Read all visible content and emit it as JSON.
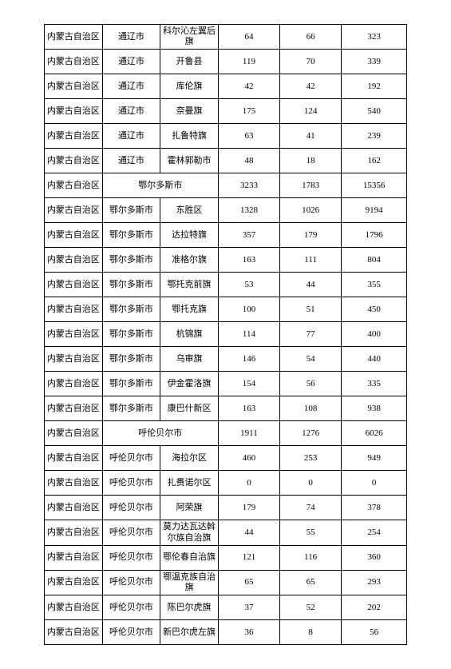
{
  "table": {
    "border_color": "#000000",
    "bg_color": "#ffffff",
    "font_color": "#000000",
    "font_size": 11,
    "rows": [
      {
        "cells": [
          "内蒙古自治区",
          "通辽市",
          "科尔沁左翼后旗",
          "64",
          "66",
          "323"
        ],
        "spans": [
          1,
          1,
          1,
          1,
          1,
          1
        ]
      },
      {
        "cells": [
          "内蒙古自治区",
          "通辽市",
          "开鲁县",
          "119",
          "70",
          "339"
        ],
        "spans": [
          1,
          1,
          1,
          1,
          1,
          1
        ]
      },
      {
        "cells": [
          "内蒙古自治区",
          "通辽市",
          "库伦旗",
          "42",
          "42",
          "192"
        ],
        "spans": [
          1,
          1,
          1,
          1,
          1,
          1
        ]
      },
      {
        "cells": [
          "内蒙古自治区",
          "通辽市",
          "奈曼旗",
          "175",
          "124",
          "540"
        ],
        "spans": [
          1,
          1,
          1,
          1,
          1,
          1
        ]
      },
      {
        "cells": [
          "内蒙古自治区",
          "通辽市",
          "扎鲁特旗",
          "63",
          "41",
          "239"
        ],
        "spans": [
          1,
          1,
          1,
          1,
          1,
          1
        ]
      },
      {
        "cells": [
          "内蒙古自治区",
          "通辽市",
          "霍林郭勒市",
          "48",
          "18",
          "162"
        ],
        "spans": [
          1,
          1,
          1,
          1,
          1,
          1
        ]
      },
      {
        "cells": [
          "内蒙古自治区",
          "鄂尔多斯市",
          "3233",
          "1783",
          "15356"
        ],
        "spans": [
          1,
          2,
          1,
          1,
          1
        ]
      },
      {
        "cells": [
          "内蒙古自治区",
          "鄂尔多斯市",
          "东胜区",
          "1328",
          "1026",
          "9194"
        ],
        "spans": [
          1,
          1,
          1,
          1,
          1,
          1
        ]
      },
      {
        "cells": [
          "内蒙古自治区",
          "鄂尔多斯市",
          "达拉特旗",
          "357",
          "179",
          "1796"
        ],
        "spans": [
          1,
          1,
          1,
          1,
          1,
          1
        ]
      },
      {
        "cells": [
          "内蒙古自治区",
          "鄂尔多斯市",
          "准格尔旗",
          "163",
          "111",
          "804"
        ],
        "spans": [
          1,
          1,
          1,
          1,
          1,
          1
        ]
      },
      {
        "cells": [
          "内蒙古自治区",
          "鄂尔多斯市",
          "鄂托克前旗",
          "53",
          "44",
          "355"
        ],
        "spans": [
          1,
          1,
          1,
          1,
          1,
          1
        ]
      },
      {
        "cells": [
          "内蒙古自治区",
          "鄂尔多斯市",
          "鄂托克旗",
          "100",
          "51",
          "450"
        ],
        "spans": [
          1,
          1,
          1,
          1,
          1,
          1
        ]
      },
      {
        "cells": [
          "内蒙古自治区",
          "鄂尔多斯市",
          "杭锦旗",
          "114",
          "77",
          "400"
        ],
        "spans": [
          1,
          1,
          1,
          1,
          1,
          1
        ]
      },
      {
        "cells": [
          "内蒙古自治区",
          "鄂尔多斯市",
          "乌审旗",
          "146",
          "54",
          "440"
        ],
        "spans": [
          1,
          1,
          1,
          1,
          1,
          1
        ]
      },
      {
        "cells": [
          "内蒙古自治区",
          "鄂尔多斯市",
          "伊金霍洛旗",
          "154",
          "56",
          "335"
        ],
        "spans": [
          1,
          1,
          1,
          1,
          1,
          1
        ]
      },
      {
        "cells": [
          "内蒙古自治区",
          "鄂尔多斯市",
          "康巴什新区",
          "163",
          "108",
          "938"
        ],
        "spans": [
          1,
          1,
          1,
          1,
          1,
          1
        ]
      },
      {
        "cells": [
          "内蒙古自治区",
          "呼伦贝尔市",
          "1911",
          "1276",
          "6026"
        ],
        "spans": [
          1,
          2,
          1,
          1,
          1
        ]
      },
      {
        "cells": [
          "内蒙古自治区",
          "呼伦贝尔市",
          "海拉尔区",
          "460",
          "253",
          "949"
        ],
        "spans": [
          1,
          1,
          1,
          1,
          1,
          1
        ]
      },
      {
        "cells": [
          "内蒙古自治区",
          "呼伦贝尔市",
          "扎赉诺尔区",
          "0",
          "0",
          "0"
        ],
        "spans": [
          1,
          1,
          1,
          1,
          1,
          1
        ]
      },
      {
        "cells": [
          "内蒙古自治区",
          "呼伦贝尔市",
          "阿荣旗",
          "179",
          "74",
          "378"
        ],
        "spans": [
          1,
          1,
          1,
          1,
          1,
          1
        ]
      },
      {
        "cells": [
          "内蒙古自治区",
          "呼伦贝尔市",
          "莫力达瓦达斡尔族自治旗",
          "44",
          "55",
          "254"
        ],
        "spans": [
          1,
          1,
          1,
          1,
          1,
          1
        ]
      },
      {
        "cells": [
          "内蒙古自治区",
          "呼伦贝尔市",
          "鄂伦春自治旗",
          "121",
          "116",
          "360"
        ],
        "spans": [
          1,
          1,
          1,
          1,
          1,
          1
        ]
      },
      {
        "cells": [
          "内蒙古自治区",
          "呼伦贝尔市",
          "鄂温克族自治旗",
          "65",
          "65",
          "293"
        ],
        "spans": [
          1,
          1,
          1,
          1,
          1,
          1
        ]
      },
      {
        "cells": [
          "内蒙古自治区",
          "呼伦贝尔市",
          "陈巴尔虎旗",
          "37",
          "52",
          "202"
        ],
        "spans": [
          1,
          1,
          1,
          1,
          1,
          1
        ]
      },
      {
        "cells": [
          "内蒙古自治区",
          "呼伦贝尔市",
          "新巴尔虎左旗",
          "36",
          "8",
          "56"
        ],
        "spans": [
          1,
          1,
          1,
          1,
          1,
          1
        ]
      }
    ]
  }
}
